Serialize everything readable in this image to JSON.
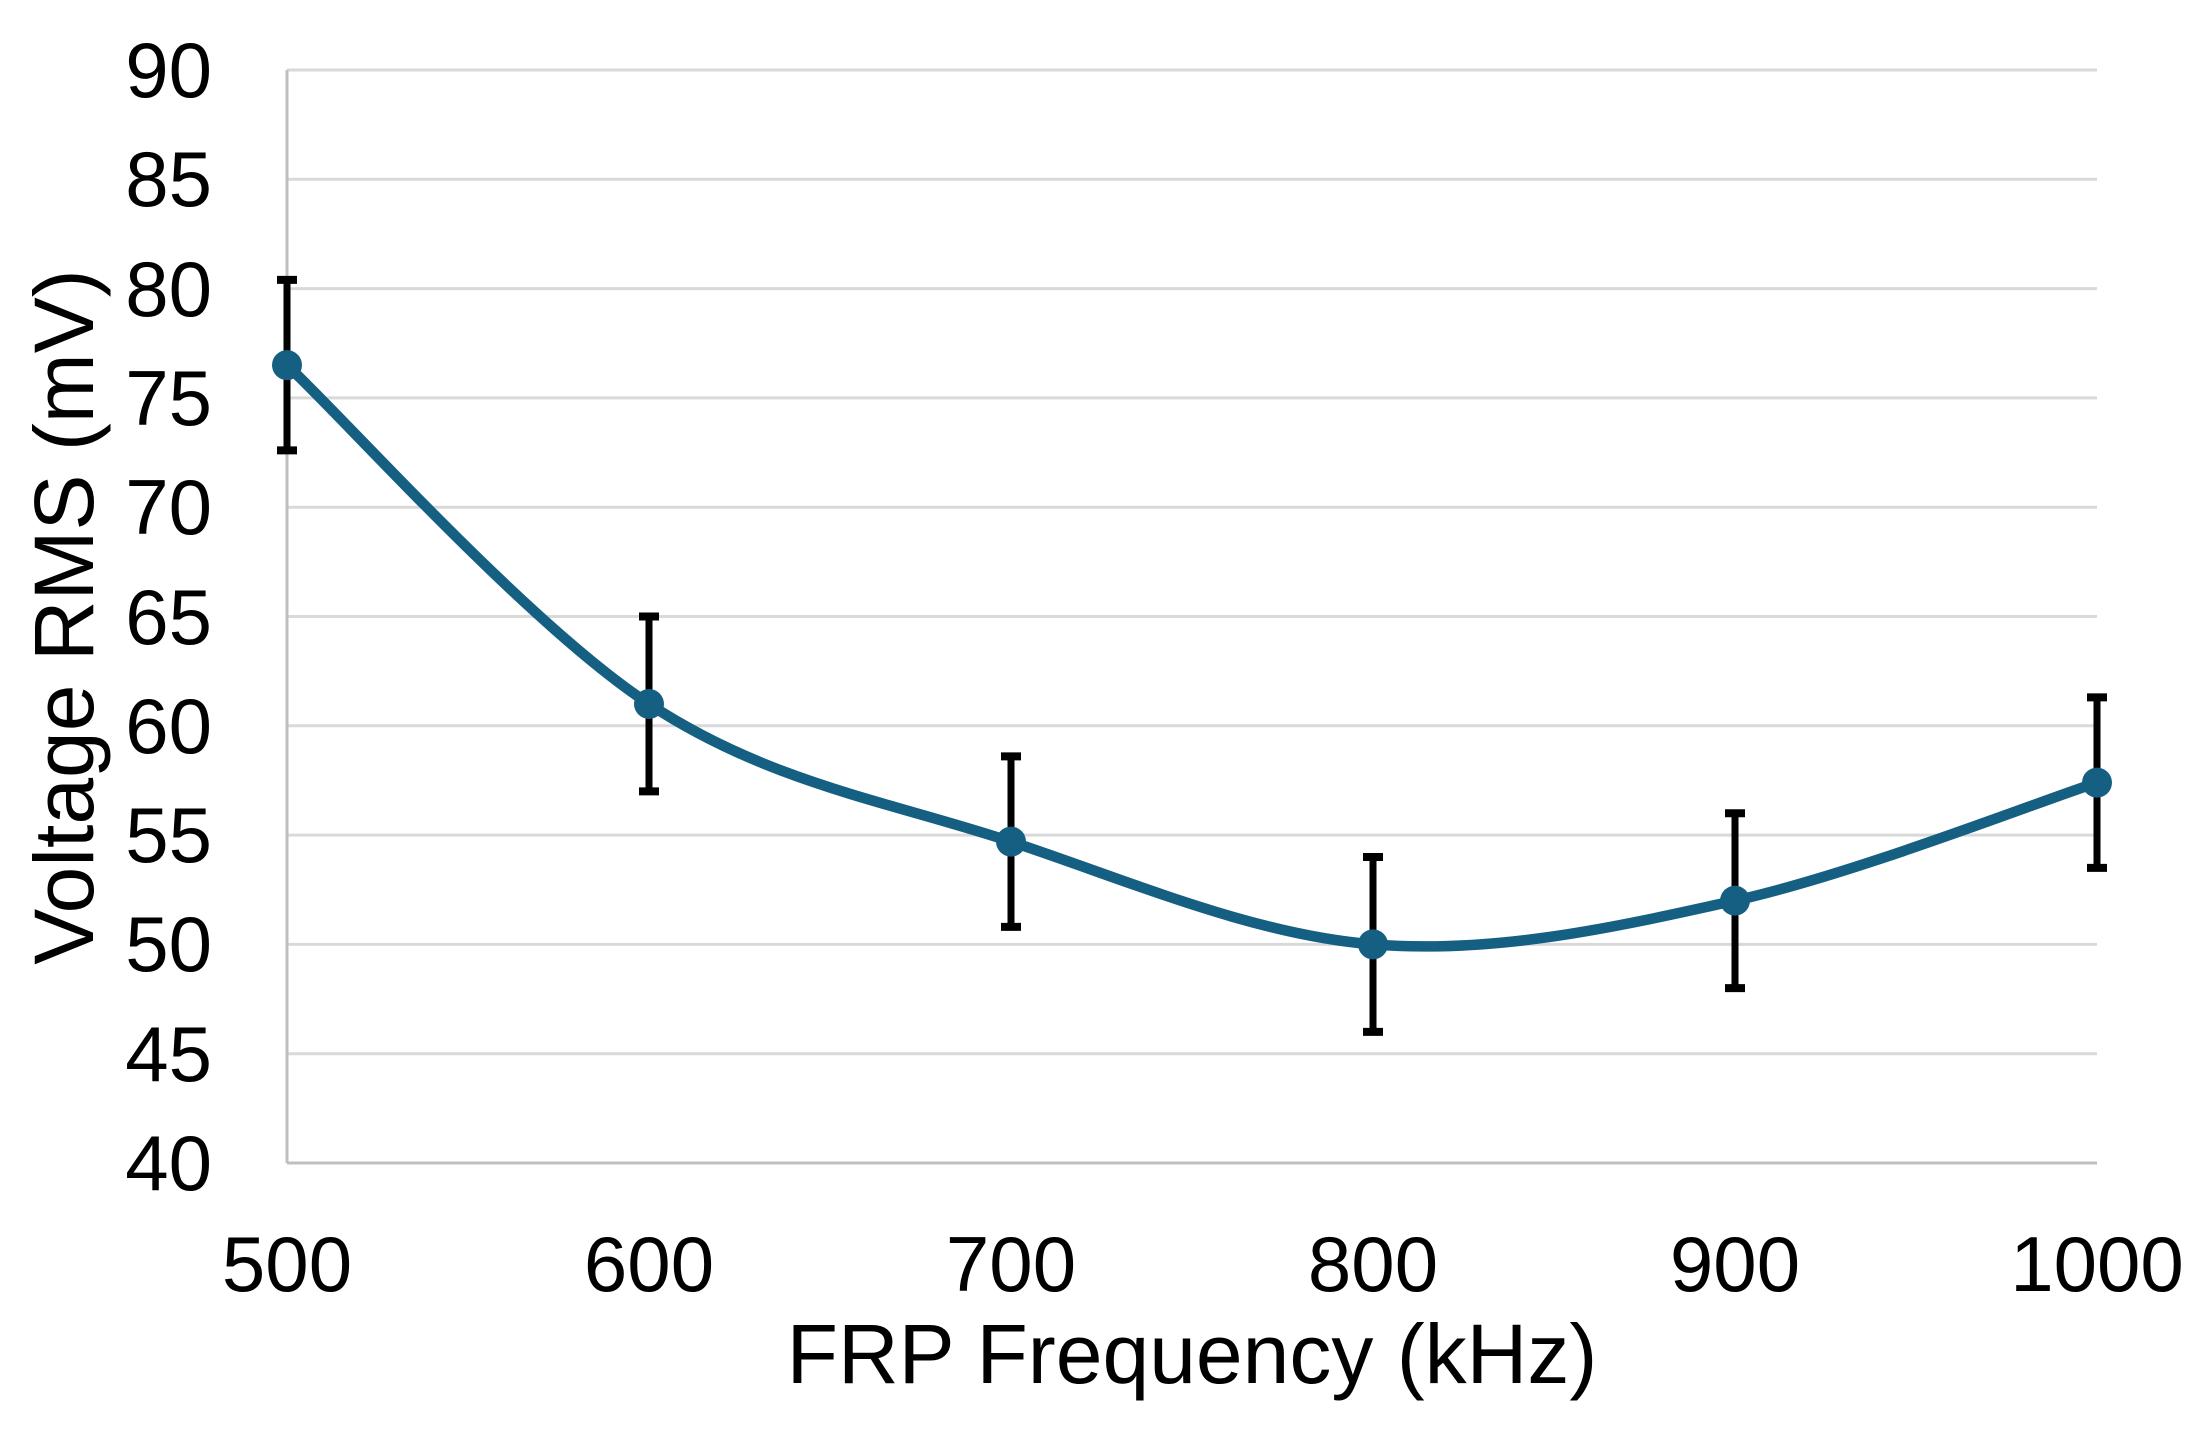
{
  "chart_data": {
    "type": "line",
    "title": "",
    "xlabel": "FRP Frequency (kHz)",
    "ylabel": "Voltage RMS (mV)",
    "x": [
      500,
      600,
      700,
      800,
      900,
      1000
    ],
    "series": [
      {
        "name": "Voltage RMS",
        "values": [
          76.5,
          61.0,
          54.7,
          50.0,
          52.0,
          57.4
        ],
        "error_plus": [
          3.9,
          4.0,
          3.9,
          4.0,
          4.0,
          3.9
        ],
        "error_minus": [
          3.9,
          4.0,
          3.9,
          4.0,
          4.0,
          3.9
        ]
      }
    ],
    "xlim": [
      500,
      1000
    ],
    "ylim": [
      40,
      90
    ],
    "xticks": [
      500,
      600,
      700,
      800,
      900,
      1000
    ],
    "yticks": [
      40,
      45,
      50,
      55,
      60,
      65,
      70,
      75,
      80,
      85,
      90
    ],
    "grid": true,
    "legend": false,
    "smooth": true,
    "marker": "circle",
    "line_color": "#156082",
    "marker_color": "#156082",
    "error_bar_color": "#000000",
    "gridline_color": "#d9d9d9",
    "axis_line_color": "#bfbfbf",
    "text_color": "#000000",
    "background_color": "#ffffff"
  }
}
